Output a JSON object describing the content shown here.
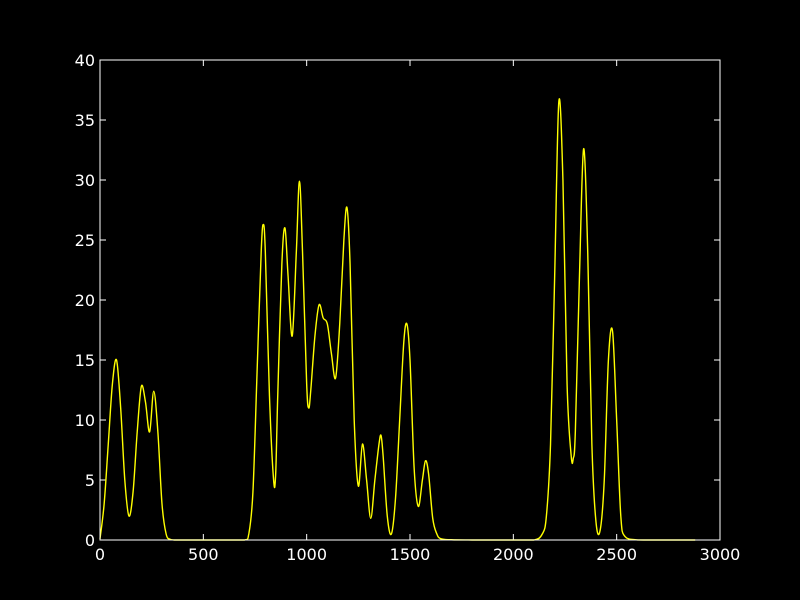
{
  "chart_data": {
    "type": "line",
    "title": "",
    "xlabel": "",
    "ylabel": "",
    "xlim": [
      0,
      3000
    ],
    "ylim": [
      0,
      40
    ],
    "x_ticks": [
      0,
      500,
      1000,
      1500,
      2000,
      2500,
      3000
    ],
    "y_ticks": [
      0,
      5,
      10,
      15,
      20,
      25,
      30,
      35,
      40
    ],
    "x_tick_labels": [
      "0",
      "500",
      "1000",
      "1500",
      "2000",
      "2500",
      "3000"
    ],
    "y_tick_labels": [
      "0",
      "5",
      "10",
      "15",
      "20",
      "25",
      "30",
      "35",
      "40"
    ],
    "grid": false,
    "legend": "none",
    "colors": {
      "background": "#000000",
      "axes": "#ffffff",
      "line": "#ffff00"
    },
    "series": [
      {
        "color": "#ffff00",
        "x": [
          0,
          20,
          40,
          60,
          80,
          100,
          120,
          140,
          160,
          180,
          200,
          220,
          240,
          260,
          280,
          300,
          320,
          340,
          360,
          400,
          500,
          600,
          700,
          720,
          740,
          760,
          780,
          790,
          800,
          820,
          840,
          850,
          860,
          880,
          895,
          910,
          930,
          950,
          965,
          980,
          1000,
          1010,
          1020,
          1040,
          1060,
          1080,
          1100,
          1120,
          1140,
          1160,
          1180,
          1195,
          1210,
          1230,
          1250,
          1270,
          1290,
          1310,
          1330,
          1350,
          1360,
          1370,
          1390,
          1410,
          1430,
          1450,
          1470,
          1485,
          1500,
          1520,
          1540,
          1560,
          1575,
          1590,
          1610,
          1630,
          1650,
          1700,
          1800,
          1900,
          2000,
          2100,
          2140,
          2160,
          2180,
          2200,
          2220,
          2240,
          2260,
          2280,
          2290,
          2300,
          2320,
          2340,
          2360,
          2380,
          2400,
          2420,
          2440,
          2460,
          2480,
          2500,
          2520,
          2540,
          2600,
          2700,
          2800,
          2880
        ],
        "y": [
          0.1,
          3.0,
          8.0,
          13.0,
          15.0,
          11.0,
          5.0,
          2.0,
          4.0,
          9.0,
          12.8,
          11.5,
          9.0,
          12.4,
          9.0,
          3.0,
          0.5,
          0.05,
          0,
          0,
          0,
          0,
          0,
          0.5,
          4.0,
          14.0,
          24.0,
          26.3,
          24.0,
          12.0,
          5.0,
          5.5,
          12.0,
          23.0,
          26.0,
          22.0,
          17.0,
          24.0,
          29.9,
          24.0,
          13.0,
          11.0,
          12.5,
          17.0,
          19.6,
          18.5,
          18.0,
          15.5,
          13.5,
          18.0,
          25.0,
          27.7,
          23.0,
          10.0,
          4.5,
          8.0,
          5.0,
          1.8,
          5.0,
          8.0,
          8.7,
          7.0,
          2.0,
          0.5,
          3.5,
          10.0,
          16.5,
          18.0,
          15.0,
          6.0,
          2.8,
          5.0,
          6.6,
          5.5,
          1.8,
          0.5,
          0.1,
          0.02,
          0,
          0,
          0,
          0,
          0.5,
          2.0,
          8.0,
          22.0,
          36.5,
          30.0,
          13.0,
          7.0,
          6.8,
          9.0,
          22.0,
          32.6,
          24.0,
          8.0,
          1.5,
          0.8,
          5.0,
          15.0,
          17.4,
          10.0,
          2.0,
          0.3,
          0.01,
          0,
          0,
          0
        ]
      }
    ]
  }
}
